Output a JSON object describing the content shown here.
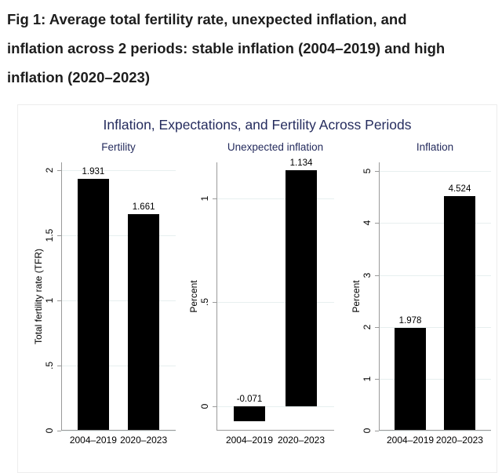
{
  "caption": {
    "lines": [
      "Fig 1: Average total fertility rate, unexpected inflation, and",
      "inflation across 2 periods: stable inflation (2004–2019) and high",
      "inflation (2020–2023)"
    ]
  },
  "chart_data": {
    "type": "bar",
    "title": "Inflation, Expectations, and Fertility Across Periods",
    "categories": [
      "2004–2019",
      "2020–2023"
    ],
    "grid": true,
    "legend": false,
    "colors": {
      "bar": "#000000",
      "title": "#252c5e",
      "gridline": "#e7efef",
      "axis": "#9a9a9a"
    },
    "panels": [
      {
        "title": "Fertility",
        "ylabel": "Total fertility rate (TFR)",
        "ylim": [
          0,
          2.06
        ],
        "ticks": [
          {
            "v": 0,
            "label": "0"
          },
          {
            "v": 0.5,
            "label": ".5"
          },
          {
            "v": 1,
            "label": "1"
          },
          {
            "v": 1.5,
            "label": "1.5"
          },
          {
            "v": 2,
            "label": "2"
          }
        ],
        "values": [
          1.931,
          1.661
        ],
        "bar_labels": [
          "1.931",
          "1.661"
        ]
      },
      {
        "title": "Unexpected inflation",
        "ylabel": "Percent",
        "ylim": [
          -0.117,
          1.173
        ],
        "ticks": [
          {
            "v": 0,
            "label": "0"
          },
          {
            "v": 0.5,
            "label": ".5"
          },
          {
            "v": 1,
            "label": "1"
          }
        ],
        "values": [
          -0.071,
          1.134
        ],
        "bar_labels": [
          "-0.071",
          "1.134"
        ]
      },
      {
        "title": "Inflation",
        "ylabel": "Percent",
        "ylim": [
          0,
          5.17
        ],
        "ticks": [
          {
            "v": 0,
            "label": "0"
          },
          {
            "v": 1,
            "label": "1"
          },
          {
            "v": 2,
            "label": "2"
          },
          {
            "v": 3,
            "label": "3"
          },
          {
            "v": 4,
            "label": "4"
          },
          {
            "v": 5,
            "label": "5"
          }
        ],
        "values": [
          1.978,
          4.524
        ],
        "bar_labels": [
          "1.978",
          "4.524"
        ]
      }
    ]
  }
}
